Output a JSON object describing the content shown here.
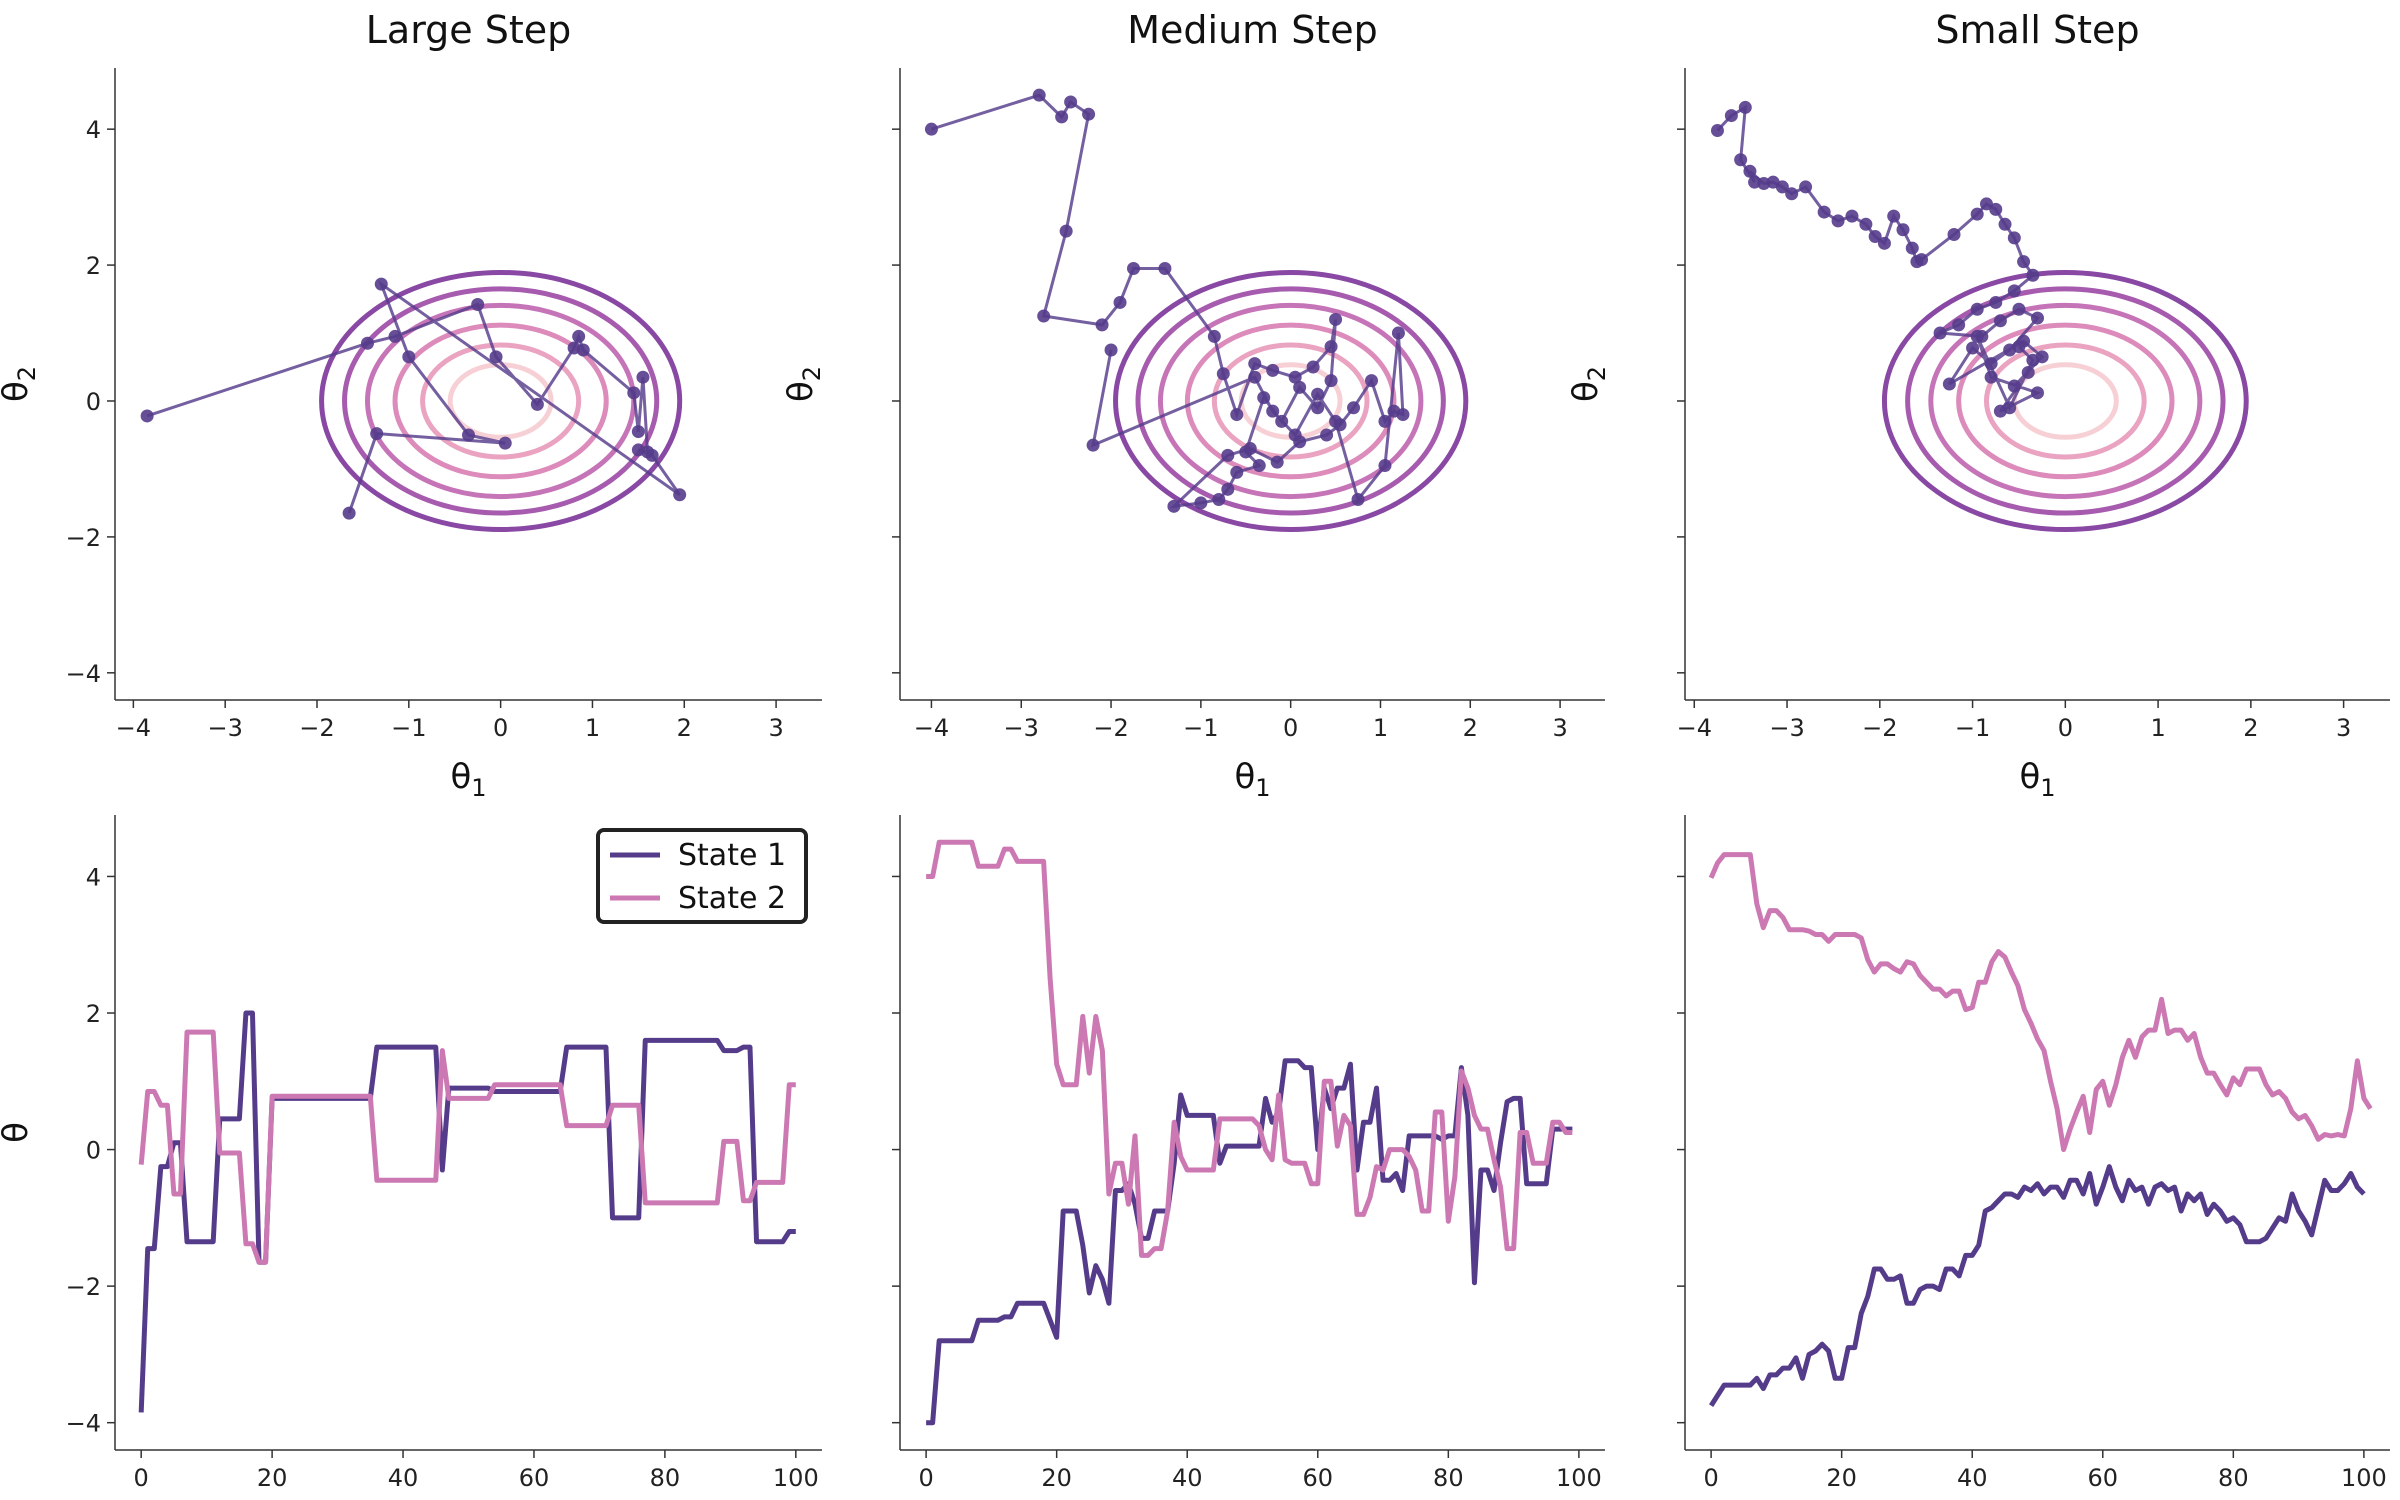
{
  "colors": {
    "state1": "#553c8b",
    "state2": "#cc79b3",
    "chain": "#553c8b",
    "contours": [
      "#f7d0d6",
      "#eaa3c0",
      "#dc8bbb",
      "#c674b8",
      "#a65bae",
      "#8848a3"
    ]
  },
  "legend": {
    "placement": "upper-right",
    "items": [
      "State 1",
      "State 2"
    ]
  },
  "chart_data": [
    {
      "type": "scatter",
      "title": "Large Step",
      "xlabel": "θ1",
      "ylabel": "θ2",
      "xlim": [
        -4.2,
        3.5
      ],
      "ylim": [
        -4.4,
        4.9
      ],
      "xticks": [
        -4,
        -3,
        -2,
        -1,
        0,
        1,
        2,
        3
      ],
      "yticks": [
        -4,
        -2,
        0,
        2,
        4
      ],
      "contour_levels": [
        0.55,
        0.85,
        1.15,
        1.45,
        1.7,
        1.95
      ],
      "contour_aspect": 0.97,
      "x": [
        -3.85,
        -1.45,
        -1.15,
        -0.25,
        -0.05,
        0.4,
        0.8,
        0.85,
        0.9,
        1.45,
        1.5,
        1.55,
        1.6,
        1.5,
        1.65,
        1.95,
        -1.3,
        -1.0,
        -0.35,
        0.05,
        -1.35,
        -1.65
      ],
      "y": [
        -0.22,
        0.85,
        0.95,
        1.42,
        0.65,
        -0.05,
        0.78,
        0.95,
        0.75,
        0.12,
        -0.45,
        0.35,
        -0.75,
        -0.72,
        -0.8,
        -1.38,
        1.72,
        0.65,
        -0.5,
        -0.62,
        -0.48,
        -1.65
      ]
    },
    {
      "type": "scatter",
      "title": "Medium Step",
      "xlabel": "θ1",
      "ylabel": "θ2",
      "xlim": [
        -4.35,
        3.5
      ],
      "ylim": [
        -4.4,
        4.9
      ],
      "xticks": [
        -4,
        -3,
        -2,
        -1,
        0,
        1,
        2,
        3
      ],
      "yticks": [
        -4,
        -2,
        0,
        2,
        4
      ],
      "contour_levels": [
        0.55,
        0.85,
        1.15,
        1.45,
        1.7,
        1.95
      ],
      "contour_aspect": 0.97,
      "x": [
        -4.0,
        -2.8,
        -2.55,
        -2.45,
        -2.25,
        -2.5,
        -2.75,
        -2.1,
        -1.9,
        -1.75,
        -1.4,
        -0.85,
        -0.75,
        -0.6,
        -0.4,
        -0.2,
        0.05,
        0.25,
        0.45,
        0.5,
        0.45,
        0.3,
        0.1,
        -0.1,
        -0.3,
        -0.5,
        -0.35,
        -0.6,
        -0.7,
        -0.8,
        -1.0,
        -1.3,
        -0.7,
        -0.45,
        -0.15,
        0.1,
        0.4,
        0.55,
        0.7,
        0.9,
        1.05,
        1.15,
        1.25,
        1.2,
        1.05,
        0.75,
        0.5,
        0.3,
        0.05,
        -0.2,
        -0.4,
        -2.2,
        -2.0
      ],
      "y": [
        4.0,
        4.5,
        4.18,
        4.4,
        4.22,
        2.5,
        1.25,
        1.12,
        1.45,
        1.95,
        1.95,
        0.95,
        0.4,
        -0.2,
        0.55,
        0.45,
        0.35,
        0.5,
        0.8,
        1.2,
        0.3,
        -0.1,
        0.2,
        -0.3,
        0.05,
        -0.75,
        -0.95,
        -1.05,
        -1.3,
        -1.45,
        -1.5,
        -1.55,
        -0.8,
        -0.7,
        -0.9,
        -0.6,
        -0.5,
        -0.35,
        -0.1,
        0.3,
        -0.3,
        -0.15,
        -0.2,
        1.0,
        -0.95,
        -1.45,
        -0.3,
        0.1,
        -0.5,
        -0.15,
        0.35,
        -0.65,
        0.75
      ]
    },
    {
      "type": "scatter",
      "title": "Small Step",
      "xlabel": "θ1",
      "ylabel": "θ2",
      "xlim": [
        -4.1,
        3.5
      ],
      "ylim": [
        -4.4,
        4.9
      ],
      "xticks": [
        -4,
        -3,
        -2,
        -1,
        0,
        1,
        2,
        3
      ],
      "yticks": [
        -4,
        -2,
        0,
        2,
        4
      ],
      "contour_levels": [
        0.55,
        0.85,
        1.15,
        1.45,
        1.7,
        1.95
      ],
      "contour_aspect": 0.97,
      "x": [
        -3.75,
        -3.6,
        -3.45,
        -3.5,
        -3.35,
        -3.4,
        -3.25,
        -3.15,
        -3.05,
        -2.95,
        -2.8,
        -2.6,
        -2.45,
        -2.3,
        -2.15,
        -2.05,
        -1.95,
        -1.85,
        -1.75,
        -1.65,
        -1.6,
        -1.55,
        -1.2,
        -0.95,
        -0.85,
        -0.75,
        -0.65,
        -0.55,
        -0.45,
        -0.35,
        -0.55,
        -0.75,
        -0.95,
        -1.15,
        -1.35,
        -0.9,
        -0.7,
        -0.5,
        -0.3,
        -0.6,
        -0.8,
        -1.0,
        -1.25,
        -0.45,
        -0.25,
        -0.55,
        -0.4,
        -0.7,
        -0.3,
        -0.8,
        -0.95,
        -0.6,
        -0.35,
        -0.5
      ],
      "y": [
        3.98,
        4.2,
        4.32,
        3.55,
        3.22,
        3.38,
        3.2,
        3.22,
        3.15,
        3.05,
        3.15,
        2.78,
        2.65,
        2.72,
        2.6,
        2.42,
        2.32,
        2.72,
        2.52,
        2.25,
        2.05,
        2.08,
        2.45,
        2.75,
        2.9,
        2.82,
        2.6,
        2.4,
        2.05,
        1.85,
        1.62,
        1.45,
        1.35,
        1.12,
        1.0,
        0.95,
        1.18,
        1.35,
        1.22,
        0.75,
        0.55,
        0.78,
        0.25,
        0.88,
        0.65,
        0.22,
        0.42,
        -0.15,
        0.12,
        0.35,
        0.95,
        -0.1,
        0.6,
        0.8
      ]
    },
    {
      "type": "line",
      "title": "",
      "xlabel": "",
      "ylabel": "θ",
      "xlim": [
        -4,
        104
      ],
      "ylim": [
        -4.4,
        4.9
      ],
      "xticks": [
        0,
        20,
        40,
        60,
        80,
        100
      ],
      "yticks": [
        -4,
        -2,
        0,
        2,
        4
      ],
      "x_start": 0,
      "legend": true,
      "series": [
        {
          "name": "State 1",
          "values": [
            -3.85,
            -1.45,
            -1.45,
            -0.25,
            -0.25,
            0.1,
            0.1,
            -1.35,
            -1.35,
            -1.35,
            -1.35,
            -1.35,
            0.45,
            0.45,
            0.45,
            0.45,
            2.0,
            2.0,
            -1.65,
            -1.65,
            0.75,
            0.75,
            0.75,
            0.75,
            0.75,
            0.75,
            0.75,
            0.75,
            0.75,
            0.75,
            0.75,
            0.75,
            0.75,
            0.75,
            0.75,
            0.75,
            1.5,
            1.5,
            1.5,
            1.5,
            1.5,
            1.5,
            1.5,
            1.5,
            1.5,
            1.5,
            -0.3,
            0.9,
            0.9,
            0.9,
            0.9,
            0.9,
            0.9,
            0.9,
            0.85,
            0.85,
            0.85,
            0.85,
            0.85,
            0.85,
            0.85,
            0.85,
            0.85,
            0.85,
            0.85,
            1.5,
            1.5,
            1.5,
            1.5,
            1.5,
            1.5,
            1.5,
            -1.0,
            -1.0,
            -1.0,
            -1.0,
            -1.0,
            1.6,
            1.6,
            1.6,
            1.6,
            1.6,
            1.6,
            1.6,
            1.6,
            1.6,
            1.6,
            1.6,
            1.6,
            1.45,
            1.45,
            1.45,
            1.5,
            1.5,
            -1.35,
            -1.35,
            -1.35,
            -1.35,
            -1.35,
            -1.2,
            -1.2
          ]
        },
        {
          "name": "State 2",
          "values": [
            -0.22,
            0.85,
            0.85,
            0.65,
            0.65,
            -0.65,
            -0.65,
            1.72,
            1.72,
            1.72,
            1.72,
            1.72,
            -0.05,
            -0.05,
            -0.05,
            -0.05,
            -1.38,
            -1.38,
            -1.65,
            -1.65,
            0.78,
            0.78,
            0.78,
            0.78,
            0.78,
            0.78,
            0.78,
            0.78,
            0.78,
            0.78,
            0.78,
            0.78,
            0.78,
            0.78,
            0.78,
            0.78,
            -0.45,
            -0.45,
            -0.45,
            -0.45,
            -0.45,
            -0.45,
            -0.45,
            -0.45,
            -0.45,
            -0.45,
            1.45,
            0.75,
            0.75,
            0.75,
            0.75,
            0.75,
            0.75,
            0.75,
            0.95,
            0.95,
            0.95,
            0.95,
            0.95,
            0.95,
            0.95,
            0.95,
            0.95,
            0.95,
            0.95,
            0.35,
            0.35,
            0.35,
            0.35,
            0.35,
            0.35,
            0.35,
            0.65,
            0.65,
            0.65,
            0.65,
            0.65,
            -0.78,
            -0.78,
            -0.78,
            -0.78,
            -0.78,
            -0.78,
            -0.78,
            -0.78,
            -0.78,
            -0.78,
            -0.78,
            -0.78,
            0.12,
            0.12,
            0.12,
            -0.75,
            -0.75,
            -0.48,
            -0.48,
            -0.48,
            -0.48,
            -0.48,
            0.95,
            0.95
          ]
        }
      ]
    },
    {
      "type": "line",
      "title": "",
      "xlabel": "",
      "ylabel": "",
      "xlim": [
        -4,
        104
      ],
      "ylim": [
        -4.4,
        4.9
      ],
      "xticks": [
        0,
        20,
        40,
        60,
        80,
        100
      ],
      "yticks": [
        -4,
        -2,
        0,
        2,
        4
      ],
      "x_start": 0,
      "legend": false,
      "series": [
        {
          "name": "State 1",
          "values": [
            -4.0,
            -4.0,
            -2.8,
            -2.8,
            -2.8,
            -2.8,
            -2.8,
            -2.8,
            -2.5,
            -2.5,
            -2.5,
            -2.5,
            -2.45,
            -2.45,
            -2.25,
            -2.25,
            -2.25,
            -2.25,
            -2.25,
            -2.5,
            -2.75,
            -0.9,
            -0.9,
            -0.9,
            -1.4,
            -2.1,
            -1.7,
            -1.9,
            -2.25,
            -0.6,
            -0.6,
            -0.5,
            -0.8,
            -1.3,
            -1.3,
            -0.9,
            -0.9,
            -0.9,
            -0.2,
            0.8,
            0.5,
            0.5,
            0.5,
            0.5,
            0.5,
            -0.2,
            0.05,
            0.05,
            0.05,
            0.05,
            0.05,
            0.05,
            0.75,
            0.4,
            0.55,
            1.3,
            1.3,
            1.3,
            1.2,
            1.2,
            0.0,
            0.9,
            0.6,
            0.9,
            0.9,
            1.25,
            -0.3,
            0.4,
            0.4,
            0.9,
            -0.45,
            -0.45,
            -0.35,
            -0.6,
            0.2,
            0.2,
            0.2,
            0.2,
            0.2,
            0.15,
            0.2,
            0.2,
            1.2,
            0.5,
            -1.95,
            -0.3,
            -0.3,
            -0.6,
            0.1,
            0.7,
            0.75,
            0.75,
            -0.5,
            -0.5,
            -0.5,
            -0.5,
            0.3,
            0.3,
            0.3,
            0.3
          ]
        },
        {
          "name": "State 2",
          "values": [
            4.0,
            4.0,
            4.5,
            4.5,
            4.5,
            4.5,
            4.5,
            4.5,
            4.15,
            4.15,
            4.15,
            4.15,
            4.4,
            4.4,
            4.22,
            4.22,
            4.22,
            4.22,
            4.22,
            2.5,
            1.25,
            0.95,
            0.95,
            0.95,
            1.95,
            1.12,
            1.95,
            1.45,
            -0.65,
            -0.2,
            -0.2,
            -0.8,
            0.2,
            -1.55,
            -1.55,
            -1.45,
            -1.45,
            -0.9,
            0.4,
            -0.1,
            -0.3,
            -0.3,
            -0.3,
            -0.3,
            -0.3,
            0.45,
            0.45,
            0.45,
            0.45,
            0.45,
            0.45,
            0.35,
            0.0,
            -0.15,
            0.8,
            -0.15,
            -0.2,
            -0.2,
            -0.2,
            -0.5,
            -0.5,
            1.0,
            1.0,
            0.05,
            0.5,
            0.35,
            -0.95,
            -0.95,
            -0.7,
            -0.25,
            -0.3,
            0.0,
            0.0,
            0.0,
            -0.1,
            -0.3,
            -0.9,
            -0.9,
            0.55,
            0.55,
            -1.05,
            -0.4,
            1.15,
            0.9,
            0.5,
            0.3,
            0.3,
            -0.15,
            -0.55,
            -1.45,
            -1.45,
            0.25,
            0.25,
            -0.2,
            -0.2,
            -0.2,
            0.4,
            0.4,
            0.25,
            0.25
          ]
        }
      ]
    },
    {
      "type": "line",
      "title": "",
      "xlabel": "",
      "ylabel": "",
      "xlim": [
        -4,
        104
      ],
      "ylim": [
        -4.4,
        4.9
      ],
      "xticks": [
        0,
        20,
        40,
        60,
        80,
        100
      ],
      "yticks": [
        -4,
        -2,
        0,
        2,
        4
      ],
      "x_start": 0,
      "legend": false,
      "series": [
        {
          "name": "State 1",
          "values": [
            -3.75,
            -3.6,
            -3.45,
            -3.45,
            -3.45,
            -3.45,
            -3.45,
            -3.35,
            -3.5,
            -3.3,
            -3.3,
            -3.2,
            -3.2,
            -3.05,
            -3.35,
            -3.0,
            -2.95,
            -2.85,
            -2.95,
            -3.35,
            -3.35,
            -2.9,
            -2.9,
            -2.4,
            -2.15,
            -1.75,
            -1.75,
            -1.9,
            -1.9,
            -1.85,
            -2.25,
            -2.25,
            -2.05,
            -2.0,
            -2.0,
            -2.05,
            -1.75,
            -1.75,
            -1.85,
            -1.55,
            -1.55,
            -1.4,
            -0.9,
            -0.85,
            -0.75,
            -0.65,
            -0.65,
            -0.7,
            -0.55,
            -0.6,
            -0.5,
            -0.65,
            -0.55,
            -0.55,
            -0.7,
            -0.45,
            -0.45,
            -0.65,
            -0.35,
            -0.8,
            -0.55,
            -0.25,
            -0.55,
            -0.75,
            -0.45,
            -0.6,
            -0.55,
            -0.8,
            -0.55,
            -0.5,
            -0.6,
            -0.55,
            -0.9,
            -0.65,
            -0.75,
            -0.65,
            -0.95,
            -0.8,
            -0.9,
            -1.05,
            -1.0,
            -1.1,
            -1.35,
            -1.35,
            -1.35,
            -1.3,
            -1.15,
            -1.0,
            -1.05,
            -0.65,
            -0.9,
            -1.05,
            -1.25,
            -0.85,
            -0.45,
            -0.6,
            -0.6,
            -0.5,
            -0.35,
            -0.55,
            -0.65
          ]
        },
        {
          "name": "State 2",
          "values": [
            3.98,
            4.2,
            4.32,
            4.32,
            4.32,
            4.32,
            4.32,
            3.6,
            3.25,
            3.5,
            3.5,
            3.4,
            3.22,
            3.22,
            3.22,
            3.2,
            3.15,
            3.15,
            3.05,
            3.15,
            3.15,
            3.15,
            3.15,
            3.1,
            2.78,
            2.6,
            2.72,
            2.72,
            2.65,
            2.6,
            2.75,
            2.72,
            2.55,
            2.45,
            2.35,
            2.35,
            2.25,
            2.32,
            2.32,
            2.05,
            2.08,
            2.45,
            2.45,
            2.75,
            2.9,
            2.82,
            2.6,
            2.4,
            2.05,
            1.85,
            1.62,
            1.45,
            1.0,
            0.6,
            0.0,
            0.3,
            0.55,
            0.78,
            0.25,
            0.88,
            1.0,
            0.65,
            0.95,
            1.35,
            1.6,
            1.35,
            1.65,
            1.75,
            1.75,
            2.2,
            1.7,
            1.75,
            1.75,
            1.6,
            1.7,
            1.35,
            1.12,
            1.12,
            0.95,
            0.8,
            1.05,
            0.95,
            1.18,
            1.18,
            1.18,
            0.95,
            0.8,
            0.85,
            0.75,
            0.55,
            0.45,
            0.5,
            0.35,
            0.15,
            0.22,
            0.2,
            0.22,
            0.2,
            0.6,
            1.3,
            0.75,
            0.6
          ]
        }
      ]
    }
  ]
}
